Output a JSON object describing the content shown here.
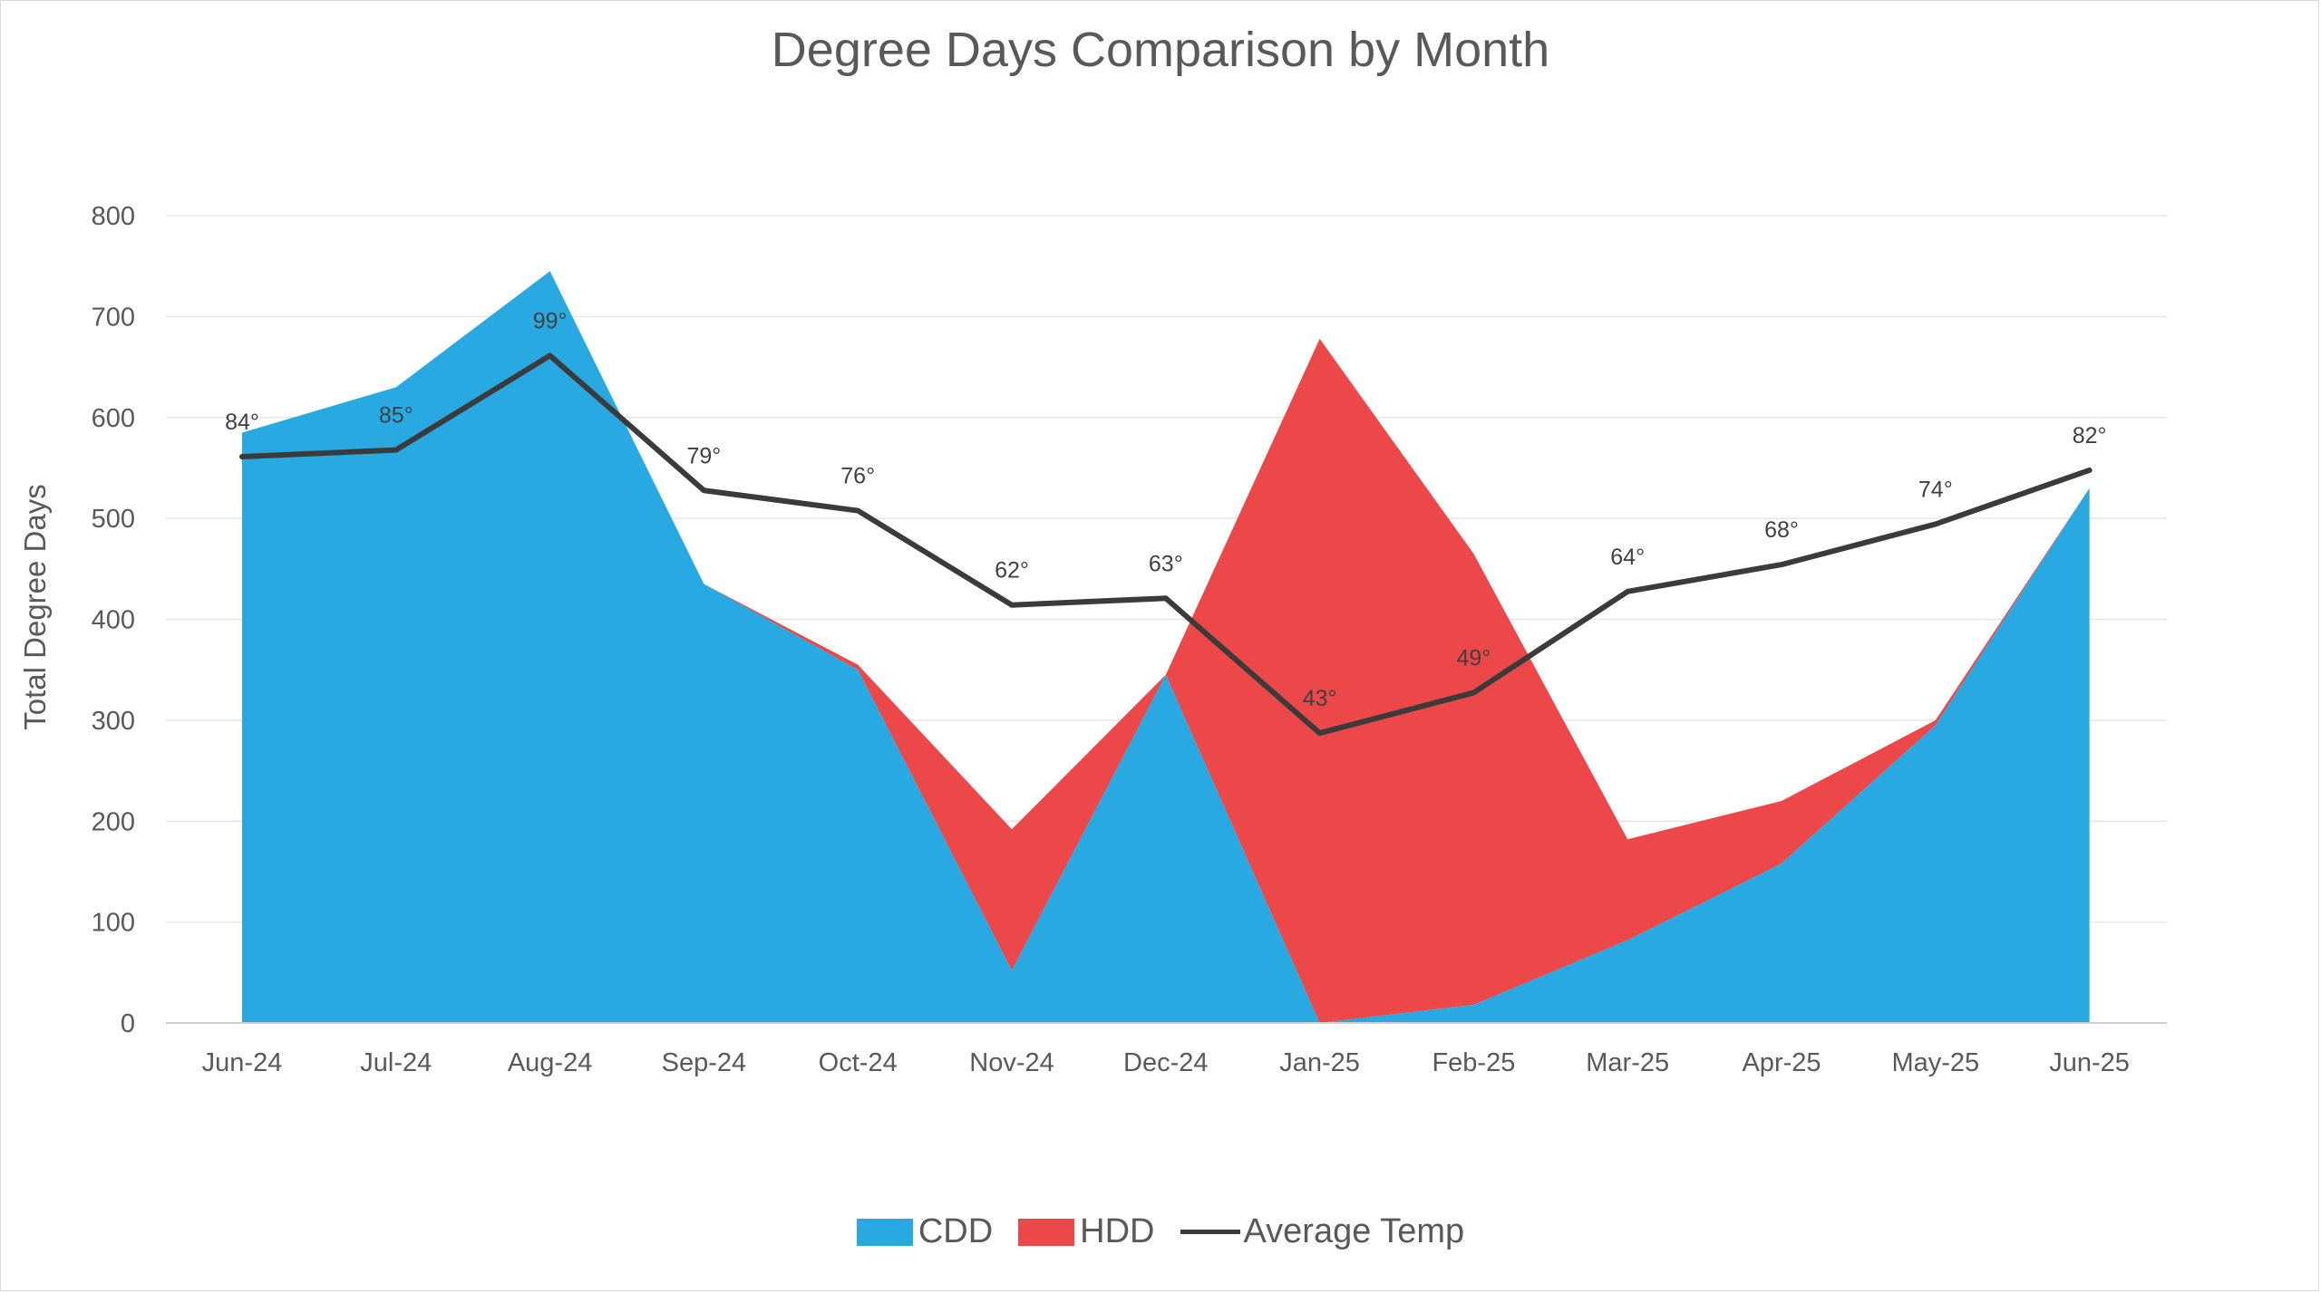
{
  "chart_data": {
    "type": "area",
    "title": "Degree Days Comparison by Month",
    "ylabel": "Total Degree Days",
    "xlabel": "",
    "ylim": [
      0,
      800
    ],
    "yticks": [
      0,
      100,
      200,
      300,
      400,
      500,
      600,
      700,
      800
    ],
    "grid": true,
    "legend_position": "bottom",
    "categories": [
      "Jun-24",
      "Jul-24",
      "Aug-24",
      "Sep-24",
      "Oct-24",
      "Nov-24",
      "Dec-24",
      "Jan-25",
      "Feb-25",
      "Mar-25",
      "Apr-25",
      "May-25",
      "Jun-25"
    ],
    "series": [
      {
        "name": "CDD",
        "kind": "stacked-area",
        "color": "#29a9e1",
        "values": [
          585,
          630,
          745,
          435,
          350,
          52,
          345,
          0,
          18,
          82,
          158,
          295,
          530
        ]
      },
      {
        "name": "HDD",
        "kind": "stacked-area",
        "color": "#ec4849",
        "values": [
          0,
          0,
          0,
          0,
          5,
          140,
          0,
          678,
          447,
          100,
          62,
          5,
          0
        ]
      },
      {
        "name": "Average Temp",
        "kind": "line",
        "color": "#3b3b3b",
        "values": [
          84,
          85,
          99,
          79,
          76,
          62,
          63,
          43,
          49,
          64,
          68,
          74,
          82
        ],
        "labels": [
          "84°",
          "85°",
          "99°",
          "79°",
          "76°",
          "62°",
          "63°",
          "43°",
          "49°",
          "64°",
          "68°",
          "74°",
          "82°"
        ]
      }
    ]
  }
}
